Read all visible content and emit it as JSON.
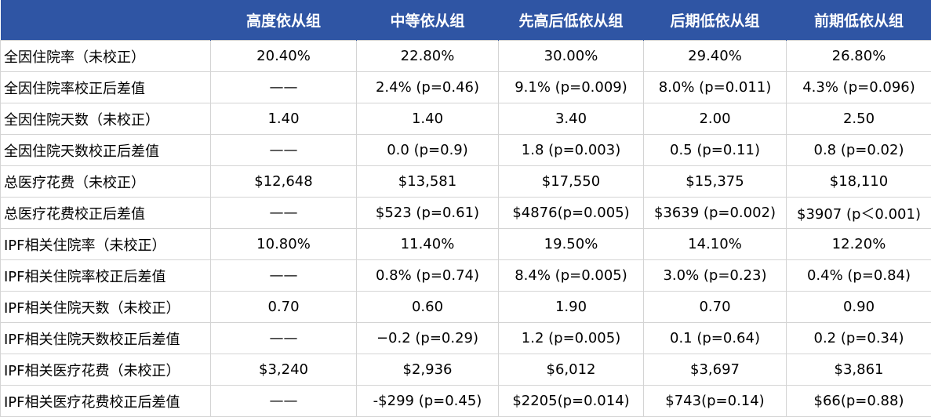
{
  "table": {
    "headers": [
      "",
      "高度依从组",
      "中等依从组",
      "先高后低依从组",
      "后期低依从组",
      "前期低依从组"
    ],
    "rows": [
      [
        "全因住院率（未校正）",
        "20.40%",
        "22.80%",
        "30.00%",
        "29.40%",
        "26.80%"
      ],
      [
        "全因住院率校正后差值",
        "——",
        "2.4% (p=0.46)",
        "9.1% (p=0.009)",
        "8.0% (p=0.011)",
        "4.3% (p=0.096)"
      ],
      [
        "全因住院天数（未校正）",
        "1.40",
        "1.40",
        "3.40",
        "2.00",
        "2.50"
      ],
      [
        "全因住院天数校正后差值",
        "——",
        "0.0 (p=0.9)",
        "1.8 (p=0.003)",
        "0.5 (p=0.11)",
        "0.8 (p=0.02)"
      ],
      [
        "总医疗花费（未校正）",
        "$12,648",
        "$13,581",
        "$17,550",
        "$15,375",
        "$18,110"
      ],
      [
        "总医疗花费校正后差值",
        "——",
        "$523 (p=0.61)",
        "$4876(p=0.005)",
        "$3639 (p=0.002)",
        "$3907 (p＜0.001)"
      ],
      [
        "IPF相关住院率（未校正）",
        "10.80%",
        "11.40%",
        "19.50%",
        "14.10%",
        "12.20%"
      ],
      [
        "IPF相关住院率校正后差值",
        "——",
        "0.8% (p=0.74)",
        "8.4% (p=0.005)",
        "3.0% (p=0.23)",
        "0.4% (p=0.84)"
      ],
      [
        "IPF相关住院天数（未校正）",
        "0.70",
        "0.60",
        "1.90",
        "0.70",
        "0.90"
      ],
      [
        "IPF相关住院天数校正后差值",
        "——",
        "−0.2 (p=0.29)",
        "1.2 (p=0.005)",
        "0.1 (p=0.64)",
        "0.2 (p=0.34)"
      ],
      [
        "IPF相关医疗花费（未校正）",
        "$3,240",
        "$2,936",
        "$6,012",
        "$3,697",
        "$3,861"
      ],
      [
        "IPF相关医疗花费校正后差值",
        "——",
        "-$299 (p=0.45)",
        "$2205(p=0.014)",
        "$743(p=0.14)",
        "$66(p=0.88)"
      ]
    ]
  }
}
